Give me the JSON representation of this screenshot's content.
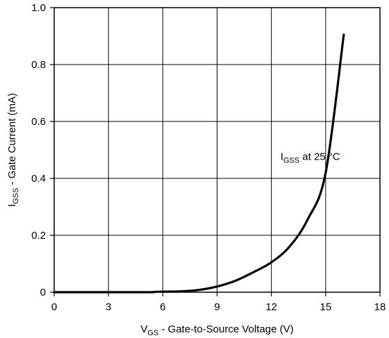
{
  "chart_data": {
    "type": "line",
    "title": "",
    "xlabel": {
      "main": "V",
      "sub": "GS",
      "rest": " - Gate-to-Source Voltage (V)"
    },
    "ylabel": {
      "main": "I",
      "sub": "GSS",
      "rest": " - Gate Current (mA)"
    },
    "xlim": [
      0,
      18
    ],
    "ylim": [
      0,
      1.0
    ],
    "x_ticks": [
      0,
      3,
      6,
      9,
      12,
      15,
      18
    ],
    "x_tick_labels": [
      "0",
      "3",
      "6",
      "9",
      "12",
      "15",
      "18"
    ],
    "y_ticks": [
      0,
      0.2,
      0.4,
      0.6,
      0.8,
      1.0
    ],
    "y_tick_labels": [
      "0",
      "0.2",
      "0.4",
      "0.6",
      "0.8",
      "1.0"
    ],
    "grid": true,
    "series": [
      {
        "x": [
          0,
          5,
          5.5,
          6,
          7,
          8,
          9,
          10,
          11,
          12,
          13,
          14,
          15,
          16
        ],
        "y": [
          0,
          0,
          0.001,
          0.002,
          0.003,
          0.008,
          0.02,
          0.04,
          0.07,
          0.105,
          0.16,
          0.255,
          0.42,
          0.905
        ]
      }
    ],
    "annotation": {
      "main": "I",
      "sub": "GSS",
      "rest": " at 25 °C",
      "x": 12.5,
      "y": 0.465
    },
    "line_color": "#000000"
  }
}
